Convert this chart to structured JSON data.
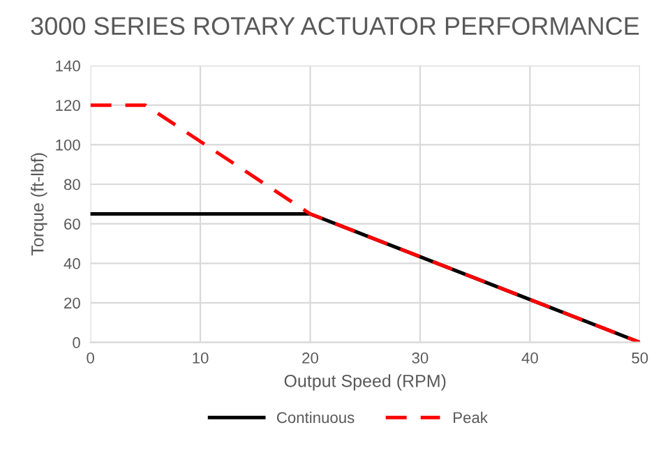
{
  "chart_data": {
    "type": "line",
    "title": "3000 SERIES ROTARY ACTUATOR PERFORMANCE",
    "xlabel": "Output Speed (RPM)",
    "ylabel": "Torque (ft-lbf)",
    "series": [
      {
        "name": "Continuous",
        "color": "#000000",
        "line_style": "solid",
        "x": [
          0,
          20,
          50
        ],
        "values": [
          65,
          65,
          0
        ]
      },
      {
        "name": "Peak",
        "color": "#ff0000",
        "line_style": "dashed",
        "x": [
          0,
          5,
          20,
          50
        ],
        "values": [
          120,
          120,
          65,
          0
        ]
      }
    ],
    "xlim": [
      0,
      50
    ],
    "xticks": [
      0,
      10,
      20,
      30,
      40,
      50
    ],
    "ylim": [
      0,
      140
    ],
    "yticks": [
      0,
      20,
      40,
      60,
      80,
      100,
      120,
      140
    ],
    "grid": true,
    "legend": "bottom",
    "marker": "none"
  }
}
